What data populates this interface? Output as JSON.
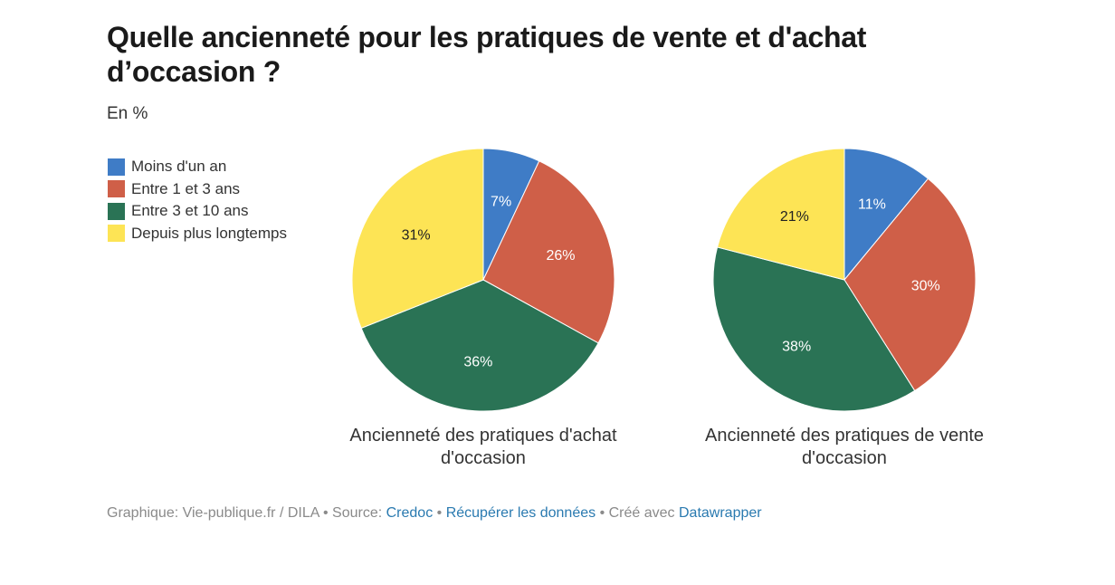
{
  "header": {
    "title": "Quelle ancienneté pour les pratiques de vente et d'achat d’occasion ?",
    "subtitle": "En %"
  },
  "chart_data": [
    {
      "type": "pie",
      "title": "Ancienneté des pratiques d'achat d'occasion",
      "title_lines": [
        "Ancienneté des pratiques d'achat",
        "d'occasion"
      ],
      "categories": [
        "Moins d'un an",
        "Entre 1 et 3 ans",
        "Entre 3 et 10 ans",
        "Depuis plus longtemps"
      ],
      "values": [
        7,
        26,
        36,
        31
      ],
      "labels": [
        "7%",
        "26%",
        "36%",
        "31%"
      ],
      "colors": [
        "#3f7cc6",
        "#cf5f48",
        "#2a7355",
        "#fde455"
      ]
    },
    {
      "type": "pie",
      "title": "Ancienneté des pratiques de vente d'occasion",
      "title_lines": [
        "Ancienneté des pratiques de vente",
        "d'occasion"
      ],
      "categories": [
        "Moins d'un an",
        "Entre 1 et 3 ans",
        "Entre 3 et 10 ans",
        "Depuis plus longtemps"
      ],
      "values": [
        11,
        30,
        38,
        21
      ],
      "labels": [
        "11%",
        "30%",
        "38%",
        "21%"
      ],
      "colors": [
        "#3f7cc6",
        "#cf5f48",
        "#2a7355",
        "#fde455"
      ]
    }
  ],
  "legend": {
    "placement": "top-left",
    "items": [
      {
        "label": "Moins d'un an",
        "color": "#3f7cc6"
      },
      {
        "label": "Entre 1 et 3 ans",
        "color": "#cf5f48"
      },
      {
        "label": "Entre 3 et 10 ans",
        "color": "#2a7355"
      },
      {
        "label": "Depuis plus longtemps",
        "color": "#fde455"
      }
    ]
  },
  "footer": {
    "graphic": "Graphique: Vie-publique.fr / DILA",
    "sep1": " • ",
    "source_label": "Source: ",
    "source_link": "Credoc",
    "sep2": " • ",
    "data_link": "Récupérer les données",
    "sep3": " • ",
    "made_with": "Créé avec ",
    "tool_link": "Datawrapper"
  }
}
